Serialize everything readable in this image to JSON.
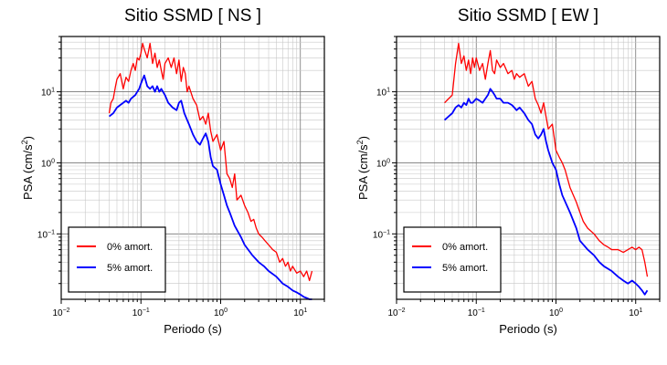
{
  "chart_data": [
    {
      "type": "line",
      "title": "Sitio SSMD [ NS ]",
      "xlabel": "Periodo (s)",
      "ylabel_main": "PSA (cm/s",
      "ylabel_sup": "2",
      "ylabel_tail": ")",
      "x_scale": "log",
      "y_scale": "log",
      "xlim": [
        0.01,
        20
      ],
      "ylim": [
        0.012,
        60
      ],
      "grid": true,
      "legend_position": "bottom-left",
      "x_ticks": [
        {
          "base": "10",
          "exp": "−2"
        },
        {
          "base": "10",
          "exp": "−1"
        },
        {
          "base": "10",
          "exp": "0"
        },
        {
          "base": "10",
          "exp": "1"
        }
      ],
      "y_ticks": [
        {
          "base": "10",
          "exp": "−1"
        },
        {
          "base": "10",
          "exp": "0"
        },
        {
          "base": "10",
          "exp": "1"
        }
      ],
      "series": [
        {
          "name": "0% amort.",
          "color": "#ff0000",
          "x": [
            0.04,
            0.042,
            0.045,
            0.048,
            0.05,
            0.055,
            0.06,
            0.065,
            0.07,
            0.075,
            0.08,
            0.085,
            0.09,
            0.095,
            0.1,
            0.105,
            0.11,
            0.12,
            0.13,
            0.14,
            0.15,
            0.16,
            0.17,
            0.18,
            0.19,
            0.2,
            0.22,
            0.24,
            0.26,
            0.28,
            0.3,
            0.32,
            0.34,
            0.36,
            0.38,
            0.4,
            0.45,
            0.5,
            0.55,
            0.6,
            0.65,
            0.7,
            0.75,
            0.8,
            0.9,
            1.0,
            1.1,
            1.2,
            1.3,
            1.4,
            1.5,
            1.6,
            1.8,
            2.0,
            2.2,
            2.4,
            2.6,
            2.8,
            3.0,
            3.3,
            3.6,
            4.0,
            4.5,
            5.0,
            5.5,
            6.0,
            6.5,
            7.0,
            7.5,
            8.0,
            9.0,
            10.0,
            11.0,
            12.0,
            13.0,
            14.0
          ],
          "y": [
            5.0,
            7.0,
            8.0,
            12.0,
            15.0,
            18.0,
            11.0,
            16.0,
            14.0,
            20.0,
            25.0,
            20.0,
            30.0,
            28.0,
            35.0,
            48.0,
            40.0,
            30.0,
            48.0,
            25.0,
            35.0,
            22.0,
            28.0,
            20.0,
            15.0,
            25.0,
            30.0,
            22.0,
            30.0,
            18.0,
            28.0,
            14.0,
            22.0,
            18.0,
            10.0,
            12.0,
            8.0,
            6.5,
            4.0,
            4.5,
            3.5,
            5.0,
            2.8,
            2.0,
            2.5,
            1.5,
            2.0,
            0.7,
            0.6,
            0.45,
            0.7,
            0.3,
            0.35,
            0.25,
            0.2,
            0.15,
            0.16,
            0.12,
            0.1,
            0.09,
            0.08,
            0.07,
            0.06,
            0.055,
            0.04,
            0.045,
            0.035,
            0.04,
            0.03,
            0.035,
            0.028,
            0.03,
            0.025,
            0.03,
            0.022,
            0.03
          ]
        },
        {
          "name": "5% amort.",
          "color": "#0000ff",
          "x": [
            0.04,
            0.045,
            0.05,
            0.055,
            0.06,
            0.065,
            0.07,
            0.075,
            0.08,
            0.085,
            0.09,
            0.095,
            0.1,
            0.11,
            0.12,
            0.13,
            0.14,
            0.15,
            0.16,
            0.17,
            0.18,
            0.2,
            0.22,
            0.25,
            0.28,
            0.3,
            0.32,
            0.35,
            0.4,
            0.45,
            0.5,
            0.55,
            0.6,
            0.65,
            0.7,
            0.75,
            0.8,
            0.9,
            1.0,
            1.1,
            1.2,
            1.3,
            1.5,
            1.8,
            2.0,
            2.5,
            3.0,
            3.5,
            4.0,
            5.0,
            6.0,
            7.0,
            8.0,
            9.0,
            10.0,
            11.0,
            12.0,
            13.0,
            14.0
          ],
          "y": [
            4.5,
            5.0,
            6.0,
            6.5,
            7.0,
            7.5,
            7.0,
            8.0,
            8.5,
            9.0,
            10.0,
            11.0,
            13.0,
            17.0,
            12.0,
            11.0,
            12.0,
            10.0,
            12.0,
            10.0,
            11.0,
            9.0,
            7.0,
            6.0,
            5.5,
            7.0,
            7.5,
            5.0,
            3.5,
            2.5,
            2.0,
            1.8,
            2.2,
            2.6,
            2.0,
            1.2,
            0.9,
            0.8,
            0.5,
            0.35,
            0.25,
            0.2,
            0.13,
            0.09,
            0.07,
            0.05,
            0.04,
            0.035,
            0.03,
            0.025,
            0.02,
            0.018,
            0.016,
            0.015,
            0.014,
            0.013,
            0.0125,
            0.012,
            0.012
          ]
        }
      ]
    },
    {
      "type": "line",
      "title": "Sitio SSMD [ EW ]",
      "xlabel": "Periodo (s)",
      "ylabel_main": "PSA (cm/s",
      "ylabel_sup": "2",
      "ylabel_tail": ")",
      "x_scale": "log",
      "y_scale": "log",
      "xlim": [
        0.01,
        20
      ],
      "ylim": [
        0.012,
        60
      ],
      "grid": true,
      "legend_position": "bottom-left",
      "x_ticks": [
        {
          "base": "10",
          "exp": "−2"
        },
        {
          "base": "10",
          "exp": "−1"
        },
        {
          "base": "10",
          "exp": "0"
        },
        {
          "base": "10",
          "exp": "1"
        }
      ],
      "y_ticks": [
        {
          "base": "10",
          "exp": "−1"
        },
        {
          "base": "10",
          "exp": "0"
        },
        {
          "base": "10",
          "exp": "1"
        }
      ],
      "series": [
        {
          "name": "0% amort.",
          "color": "#ff0000",
          "x": [
            0.04,
            0.045,
            0.05,
            0.055,
            0.06,
            0.065,
            0.07,
            0.075,
            0.08,
            0.085,
            0.09,
            0.095,
            0.1,
            0.11,
            0.12,
            0.13,
            0.14,
            0.15,
            0.16,
            0.17,
            0.18,
            0.2,
            0.22,
            0.25,
            0.28,
            0.3,
            0.32,
            0.35,
            0.4,
            0.45,
            0.5,
            0.55,
            0.6,
            0.65,
            0.7,
            0.75,
            0.8,
            0.9,
            1.0,
            1.1,
            1.2,
            1.3,
            1.5,
            1.8,
            2.0,
            2.2,
            2.5,
            3.0,
            3.5,
            4.0,
            4.5,
            5.0,
            6.0,
            7.0,
            8.0,
            9.0,
            10.0,
            11.0,
            12.0,
            13.0,
            14.0
          ],
          "y": [
            7.0,
            8.0,
            9.0,
            25.0,
            48.0,
            25.0,
            32.0,
            20.0,
            28.0,
            18.0,
            30.0,
            22.0,
            30.0,
            20.0,
            25.0,
            15.0,
            25.0,
            38.0,
            20.0,
            18.0,
            28.0,
            22.0,
            25.0,
            18.0,
            20.0,
            15.0,
            18.0,
            16.0,
            18.0,
            12.0,
            14.0,
            8.0,
            6.5,
            5.0,
            7.0,
            4.5,
            3.0,
            3.5,
            1.5,
            1.2,
            1.0,
            0.8,
            0.45,
            0.28,
            0.2,
            0.15,
            0.12,
            0.1,
            0.08,
            0.07,
            0.065,
            0.06,
            0.06,
            0.055,
            0.06,
            0.065,
            0.06,
            0.065,
            0.06,
            0.04,
            0.025
          ]
        },
        {
          "name": "5% amort.",
          "color": "#0000ff",
          "x": [
            0.04,
            0.045,
            0.05,
            0.055,
            0.06,
            0.065,
            0.07,
            0.075,
            0.08,
            0.085,
            0.09,
            0.1,
            0.11,
            0.12,
            0.13,
            0.14,
            0.15,
            0.16,
            0.17,
            0.18,
            0.2,
            0.22,
            0.25,
            0.28,
            0.3,
            0.32,
            0.35,
            0.4,
            0.45,
            0.5,
            0.55,
            0.6,
            0.65,
            0.7,
            0.75,
            0.8,
            0.9,
            1.0,
            1.1,
            1.2,
            1.5,
            1.8,
            2.0,
            2.5,
            3.0,
            3.5,
            4.0,
            5.0,
            6.0,
            7.0,
            8.0,
            9.0,
            10.0,
            11.0,
            12.0,
            13.0,
            14.0
          ],
          "y": [
            4.0,
            4.5,
            5.0,
            6.0,
            6.5,
            6.0,
            7.0,
            6.5,
            8.0,
            7.0,
            7.0,
            8.0,
            7.5,
            7.0,
            8.0,
            9.0,
            11.0,
            10.0,
            9.0,
            8.0,
            8.0,
            7.0,
            7.0,
            6.5,
            6.0,
            5.5,
            6.0,
            5.0,
            4.0,
            3.5,
            2.5,
            2.2,
            2.5,
            3.0,
            2.0,
            1.5,
            1.0,
            0.8,
            0.5,
            0.35,
            0.2,
            0.12,
            0.08,
            0.06,
            0.05,
            0.04,
            0.035,
            0.03,
            0.025,
            0.022,
            0.02,
            0.022,
            0.02,
            0.018,
            0.016,
            0.014,
            0.016
          ]
        }
      ]
    }
  ]
}
